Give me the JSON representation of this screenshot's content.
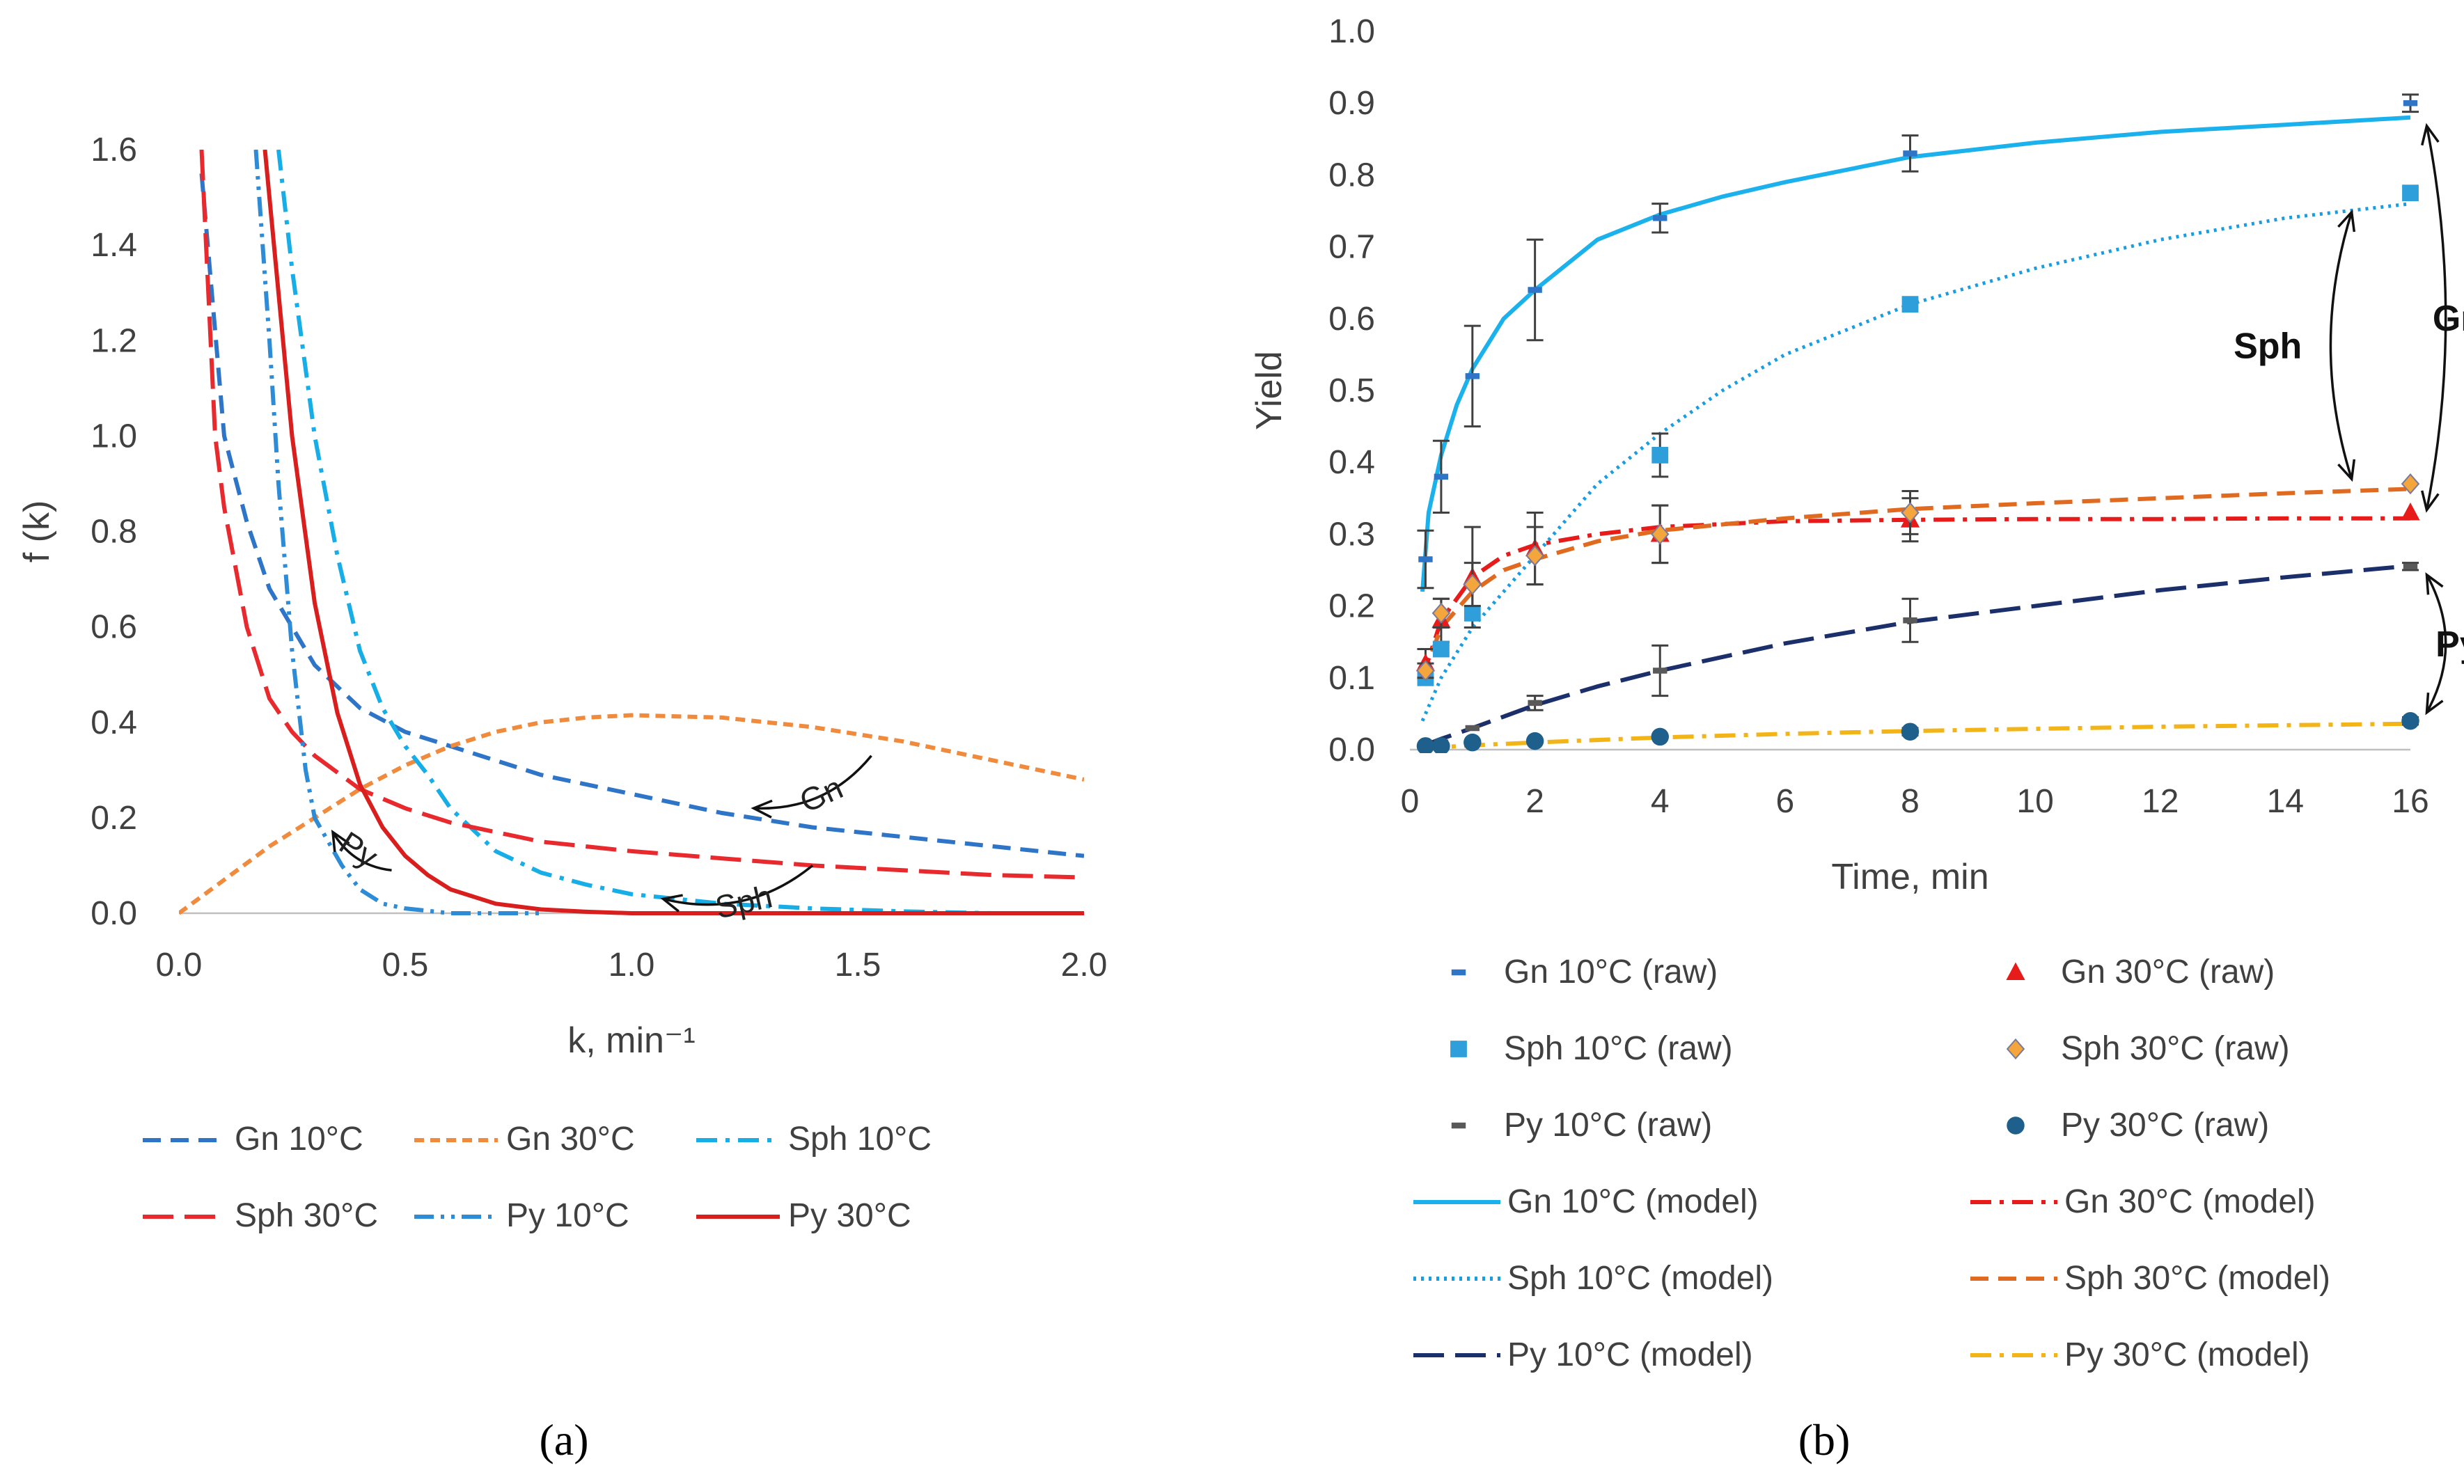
{
  "chart_data": [
    {
      "type": "line",
      "panel": "a",
      "caption": "(a)",
      "xlabel": "k, min⁻¹",
      "ylabel": "f (k)",
      "xlim": [
        0,
        2.0
      ],
      "ylim": [
        0,
        1.6
      ],
      "xticks": [
        "0.0",
        "0.5",
        "1.0",
        "1.5",
        "2.0"
      ],
      "yticks": [
        "0.0",
        "0.2",
        "0.4",
        "0.6",
        "0.8",
        "1.0",
        "1.2",
        "1.4",
        "1.6"
      ],
      "grid": false,
      "series": [
        {
          "name": "Gn 10°C",
          "color": "#2E75C8",
          "dash": "dash",
          "x": [
            0.05,
            0.1,
            0.15,
            0.2,
            0.3,
            0.4,
            0.5,
            0.6,
            0.7,
            0.8,
            1.0,
            1.2,
            1.4,
            1.6,
            1.8,
            2.0
          ],
          "y": [
            1.55,
            1.0,
            0.82,
            0.68,
            0.52,
            0.43,
            0.38,
            0.35,
            0.32,
            0.29,
            0.25,
            0.21,
            0.18,
            0.16,
            0.14,
            0.12
          ]
        },
        {
          "name": "Gn 30°C",
          "color": "#F08A3C",
          "dash": "shortdash",
          "x": [
            0.0,
            0.1,
            0.2,
            0.3,
            0.4,
            0.5,
            0.6,
            0.7,
            0.8,
            0.9,
            1.0,
            1.2,
            1.4,
            1.6,
            1.8,
            2.0
          ],
          "y": [
            0.0,
            0.07,
            0.14,
            0.2,
            0.26,
            0.31,
            0.35,
            0.38,
            0.4,
            0.41,
            0.415,
            0.41,
            0.39,
            0.36,
            0.32,
            0.28
          ]
        },
        {
          "name": "Sph 10°C",
          "color": "#17AEE8",
          "dash": "dashdot",
          "x": [
            0.22,
            0.25,
            0.3,
            0.35,
            0.4,
            0.45,
            0.5,
            0.55,
            0.6,
            0.7,
            0.8,
            0.9,
            1.0,
            1.1,
            1.2,
            1.4,
            1.6,
            1.8,
            2.0
          ],
          "y": [
            1.6,
            1.35,
            1.0,
            0.75,
            0.55,
            0.43,
            0.35,
            0.29,
            0.22,
            0.13,
            0.085,
            0.06,
            0.04,
            0.03,
            0.02,
            0.01,
            0.004,
            0.0,
            0.0
          ]
        },
        {
          "name": "Sph 30°C",
          "color": "#E8292E",
          "dash": "longdash",
          "x": [
            0.05,
            0.08,
            0.1,
            0.15,
            0.2,
            0.25,
            0.3,
            0.4,
            0.5,
            0.6,
            0.8,
            1.0,
            1.2,
            1.4,
            1.6,
            1.8,
            2.0
          ],
          "y": [
            1.6,
            1.0,
            0.85,
            0.6,
            0.45,
            0.38,
            0.33,
            0.26,
            0.22,
            0.19,
            0.15,
            0.13,
            0.115,
            0.1,
            0.09,
            0.08,
            0.075
          ]
        },
        {
          "name": "Py 10°C",
          "color": "#2E8BD6",
          "dash": "dashdotdot",
          "x": [
            0.17,
            0.2,
            0.22,
            0.25,
            0.28,
            0.3,
            0.33,
            0.36,
            0.4,
            0.45,
            0.5,
            0.6,
            0.7,
            0.8
          ],
          "y": [
            1.6,
            1.2,
            0.9,
            0.55,
            0.3,
            0.2,
            0.15,
            0.1,
            0.05,
            0.02,
            0.01,
            0.0,
            0.0,
            0.0
          ]
        },
        {
          "name": "Py 30°C",
          "color": "#D91E1E",
          "dash": "solid",
          "x": [
            0.19,
            0.22,
            0.25,
            0.3,
            0.35,
            0.4,
            0.45,
            0.5,
            0.55,
            0.6,
            0.7,
            0.8,
            0.9,
            1.0,
            1.2,
            1.5,
            2.0
          ],
          "y": [
            1.6,
            1.3,
            1.0,
            0.65,
            0.42,
            0.27,
            0.18,
            0.12,
            0.08,
            0.05,
            0.02,
            0.008,
            0.003,
            0.0,
            0.0,
            0.0,
            0.0
          ]
        }
      ],
      "annotations": [
        {
          "text": "Gn",
          "from": [
            1.53,
            0.33
          ],
          "to": [
            1.27,
            0.22
          ]
        },
        {
          "text": "Sph",
          "from": [
            1.4,
            0.1
          ],
          "to": [
            1.07,
            0.03
          ]
        },
        {
          "text": "Py",
          "from": [
            0.47,
            0.09
          ],
          "to": [
            0.34,
            0.17
          ]
        }
      ]
    },
    {
      "type": "scatter",
      "panel": "b",
      "caption": "(b)",
      "xlabel": "Time, min",
      "ylabel": "Yield",
      "xlim": [
        0,
        16
      ],
      "ylim": [
        0,
        1.0
      ],
      "xticks": [
        "0",
        "2",
        "4",
        "6",
        "8",
        "10",
        "12",
        "14",
        "16"
      ],
      "yticks": [
        "0.0",
        "0.1",
        "0.2",
        "0.3",
        "0.4",
        "0.5",
        "0.6",
        "0.7",
        "0.8",
        "0.9",
        "1.0"
      ],
      "grid": false,
      "raw_series": [
        {
          "name": "Gn 10°C (raw)",
          "color": "#2E75C8",
          "marker": "dash",
          "x": [
            0.25,
            0.5,
            1,
            2,
            4,
            8,
            16
          ],
          "y": [
            0.265,
            0.38,
            0.52,
            0.64,
            0.74,
            0.83,
            0.9
          ],
          "err": [
            0.04,
            0.05,
            0.07,
            0.07,
            0.02,
            0.025,
            0.012
          ]
        },
        {
          "name": "Gn 30°C (raw)",
          "color": "#E81B1B",
          "marker": "triangle",
          "x": [
            0.25,
            0.5,
            1,
            2,
            4,
            8,
            16
          ],
          "y": [
            0.12,
            0.18,
            0.24,
            0.28,
            0.3,
            0.32,
            0.33
          ],
          "err": [
            0.02,
            0.03,
            0.07,
            0.05,
            0.04,
            0.03,
            0.0
          ]
        },
        {
          "name": "Sph 10°C (raw)",
          "color": "#2F9FDB",
          "marker": "square",
          "x": [
            0.25,
            0.5,
            1,
            4,
            8,
            16
          ],
          "y": [
            0.1,
            0.14,
            0.19,
            0.41,
            0.62,
            0.775
          ],
          "err": [
            0.0,
            0.0,
            0.0,
            0.03,
            0.0,
            0.0
          ]
        },
        {
          "name": "Sph 30°C (raw)",
          "color": "#F4A53C",
          "marker": "diamond",
          "x": [
            0.25,
            0.5,
            1,
            2,
            4,
            8,
            16
          ],
          "y": [
            0.11,
            0.19,
            0.23,
            0.27,
            0.3,
            0.33,
            0.37
          ],
          "err": [
            0.01,
            0.02,
            0.03,
            0.04,
            0.04,
            0.03,
            0.0
          ]
        },
        {
          "name": "Py 10°C (raw)",
          "color": "#595959",
          "marker": "dash",
          "x": [
            0.25,
            0.5,
            1,
            2,
            4,
            8,
            16
          ],
          "y": [
            0.005,
            0.01,
            0.03,
            0.065,
            0.11,
            0.18,
            0.255
          ],
          "err": [
            0.0,
            0.0,
            0.0,
            0.01,
            0.035,
            0.03,
            0.005
          ]
        },
        {
          "name": "Py 30°C (raw)",
          "color": "#1F5F8B",
          "marker": "circle",
          "x": [
            0.25,
            0.5,
            1,
            2,
            4,
            8,
            16
          ],
          "y": [
            0.005,
            0.005,
            0.01,
            0.012,
            0.018,
            0.025,
            0.04
          ],
          "err": [
            0.0,
            0.0,
            0.0,
            0.0,
            0.0,
            0.005,
            0.005
          ]
        }
      ],
      "model_series": [
        {
          "name": "Gn 10°C (model)",
          "color": "#1AB1EC",
          "dash": "solid",
          "x": [
            0.2,
            0.3,
            0.5,
            0.75,
            1,
            1.5,
            2,
            3,
            4,
            5,
            6,
            8,
            10,
            12,
            14,
            16
          ],
          "y": [
            0.22,
            0.33,
            0.41,
            0.48,
            0.53,
            0.6,
            0.64,
            0.71,
            0.745,
            0.77,
            0.79,
            0.825,
            0.845,
            0.86,
            0.87,
            0.88
          ]
        },
        {
          "name": "Gn 30°C (model)",
          "color": "#E81B1B",
          "dash": "dashdot",
          "x": [
            0.2,
            0.5,
            1,
            1.5,
            2,
            3,
            4,
            6,
            8,
            10,
            12,
            14,
            16
          ],
          "y": [
            0.1,
            0.18,
            0.24,
            0.27,
            0.285,
            0.3,
            0.31,
            0.318,
            0.32,
            0.321,
            0.321,
            0.322,
            0.322
          ]
        },
        {
          "name": "Sph 10°C (model)",
          "color": "#1A9DE0",
          "dash": "dotted",
          "x": [
            0.2,
            0.5,
            1,
            1.5,
            2,
            3,
            4,
            5,
            6,
            8,
            10,
            12,
            14,
            16
          ],
          "y": [
            0.04,
            0.1,
            0.17,
            0.22,
            0.27,
            0.37,
            0.44,
            0.5,
            0.55,
            0.62,
            0.67,
            0.71,
            0.74,
            0.76
          ]
        },
        {
          "name": "Sph 30°C (model)",
          "color": "#E06A1F",
          "dash": "dash",
          "x": [
            0.2,
            0.5,
            1,
            1.5,
            2,
            3,
            4,
            6,
            8,
            10,
            12,
            14,
            16
          ],
          "y": [
            0.1,
            0.17,
            0.22,
            0.25,
            0.265,
            0.29,
            0.305,
            0.322,
            0.335,
            0.343,
            0.35,
            0.357,
            0.363
          ]
        },
        {
          "name": "Py 10°C (model)",
          "color": "#1B2F6B",
          "dash": "longdash",
          "x": [
            0.2,
            0.5,
            1,
            2,
            3,
            4,
            6,
            8,
            10,
            12,
            14,
            16
          ],
          "y": [
            0.005,
            0.015,
            0.03,
            0.062,
            0.088,
            0.11,
            0.148,
            0.178,
            0.2,
            0.222,
            0.24,
            0.256
          ]
        },
        {
          "name": "Py 30°C (model)",
          "color": "#F2B417",
          "dash": "dashdot",
          "x": [
            0.2,
            1,
            2,
            4,
            6,
            8,
            10,
            12,
            14,
            16
          ],
          "y": [
            0.002,
            0.006,
            0.01,
            0.017,
            0.022,
            0.026,
            0.029,
            0.032,
            0.034,
            0.036
          ]
        }
      ],
      "annotations": [
        {
          "text": "Sph",
          "style": "bold",
          "between": [
            0.76,
            0.365
          ],
          "at_x": 15.0
        },
        {
          "text": "Gn",
          "style": "bold",
          "between": [
            0.88,
            0.322
          ],
          "at_x": 16.2
        },
        {
          "text": "Py",
          "style": "bold",
          "between": [
            0.255,
            0.04
          ],
          "at_x": 16.2
        }
      ]
    }
  ]
}
